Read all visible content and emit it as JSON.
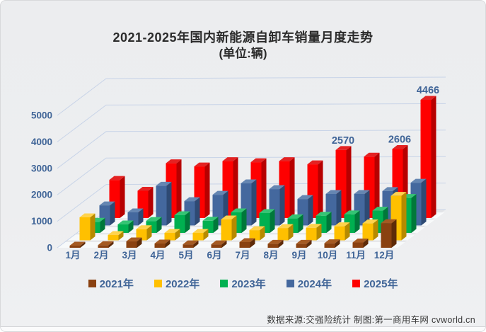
{
  "title": {
    "line1": "2021-2025年国内新能源自卸车销量月度走势",
    "line2": "(单位:辆)"
  },
  "footer": {
    "text": "数据来源:交强险统计 制图:第一商用车网 cvworld.cn"
  },
  "chart_data": {
    "type": "bar",
    "variant": "3d-column",
    "title": "2021-2025年国内新能源自卸车销量月度走势",
    "unit": "辆",
    "categories": [
      "1月",
      "2月",
      "3月",
      "4月",
      "5月",
      "6月",
      "7月",
      "8月",
      "9月",
      "10月",
      "11月",
      "12月"
    ],
    "series": [
      {
        "name": "2021年",
        "color": "#8A4110",
        "side_color": "#5E2B08",
        "top_color": "#A55A22",
        "values": [
          80,
          100,
          240,
          160,
          130,
          130,
          215,
          150,
          150,
          170,
          200,
          930
        ]
      },
      {
        "name": "2022年",
        "color": "#FFC000",
        "side_color": "#B68A00",
        "top_color": "#FFD34D",
        "values": [
          870,
          200,
          420,
          280,
          280,
          790,
          385,
          465,
          475,
          530,
          640,
          1680
        ]
      },
      {
        "name": "2023年",
        "color": "#00B050",
        "side_color": "#00783A",
        "top_color": "#35C474",
        "values": [
          420,
          320,
          450,
          670,
          460,
          775,
          750,
          550,
          650,
          700,
          840,
          1320
        ]
      },
      {
        "name": "2024年",
        "color": "#44689E",
        "side_color": "#2E4A74",
        "top_color": "#6586B2",
        "values": [
          760,
          495,
          1500,
          920,
          1160,
          1590,
          1375,
          1000,
          1190,
          1190,
          1300,
          1615
        ]
      },
      {
        "name": "2025年",
        "color": "#FE0000",
        "side_color": "#B70000",
        "top_color": "#E42222",
        "values": [
          1440,
          1030,
          2070,
          1950,
          2150,
          2110,
          2150,
          2030,
          2570,
          2320,
          2606,
          4466
        ]
      }
    ],
    "data_labels": [
      {
        "series": "2025年",
        "category": "9月",
        "text": "2570"
      },
      {
        "series": "2025年",
        "category": "11月",
        "text": "2606"
      },
      {
        "series": "2025年",
        "category": "12月",
        "text": "4466"
      }
    ],
    "yticks": [
      0,
      1000,
      2000,
      3000,
      4000,
      5000
    ],
    "ylim": [
      0,
      5500
    ],
    "grid": true,
    "legend_position": "bottom",
    "axis_text_color": "#3F6497",
    "gridline_color": "#C8D4E8"
  }
}
